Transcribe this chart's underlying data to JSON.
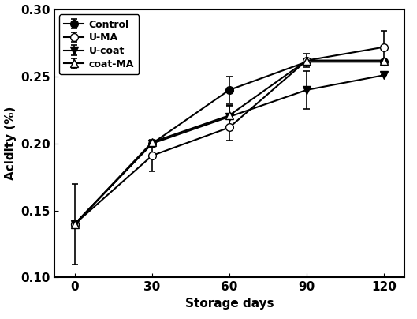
{
  "x": [
    0,
    30,
    60,
    90,
    120
  ],
  "series": {
    "Control": {
      "y": [
        0.14,
        0.2,
        0.24,
        0.261,
        0.261
      ],
      "yerr": [
        0.03,
        0.0,
        0.01,
        0.0,
        0.0
      ],
      "marker": "o",
      "markerfacecolor": "black",
      "markeredgecolor": "black",
      "color": "black",
      "markersize": 7,
      "linestyle": "-"
    },
    "U-MA": {
      "y": [
        0.14,
        0.191,
        0.212,
        0.262,
        0.272
      ],
      "yerr": [
        0.0,
        0.012,
        0.01,
        0.005,
        0.012
      ],
      "marker": "o",
      "markerfacecolor": "white",
      "markeredgecolor": "black",
      "color": "black",
      "markersize": 7,
      "linestyle": "-"
    },
    "U-coat": {
      "y": [
        0.14,
        0.2,
        0.22,
        0.24,
        0.251
      ],
      "yerr": [
        0.0,
        0.0,
        0.008,
        0.014,
        0.0
      ],
      "marker": "v",
      "markerfacecolor": "black",
      "markeredgecolor": "black",
      "color": "black",
      "markersize": 7,
      "linestyle": "-"
    },
    "coat-MA": {
      "y": [
        0.14,
        0.201,
        0.221,
        0.262,
        0.262
      ],
      "yerr": [
        0.0,
        0.0,
        0.008,
        0.0,
        0.0
      ],
      "marker": "^",
      "markerfacecolor": "white",
      "markeredgecolor": "black",
      "color": "black",
      "markersize": 7,
      "linestyle": "-"
    }
  },
  "xlabel": "Storage days",
  "ylabel": "Acidity (%)",
  "ylim": [
    0.1,
    0.3
  ],
  "yticks": [
    0.1,
    0.15,
    0.2,
    0.25,
    0.3
  ],
  "xticks": [
    0,
    30,
    60,
    90,
    120
  ],
  "legend_order": [
    "Control",
    "U-MA",
    "U-coat",
    "coat-MA"
  ],
  "legend_loc": "upper left",
  "background_color": "#ffffff",
  "linewidth": 1.5
}
